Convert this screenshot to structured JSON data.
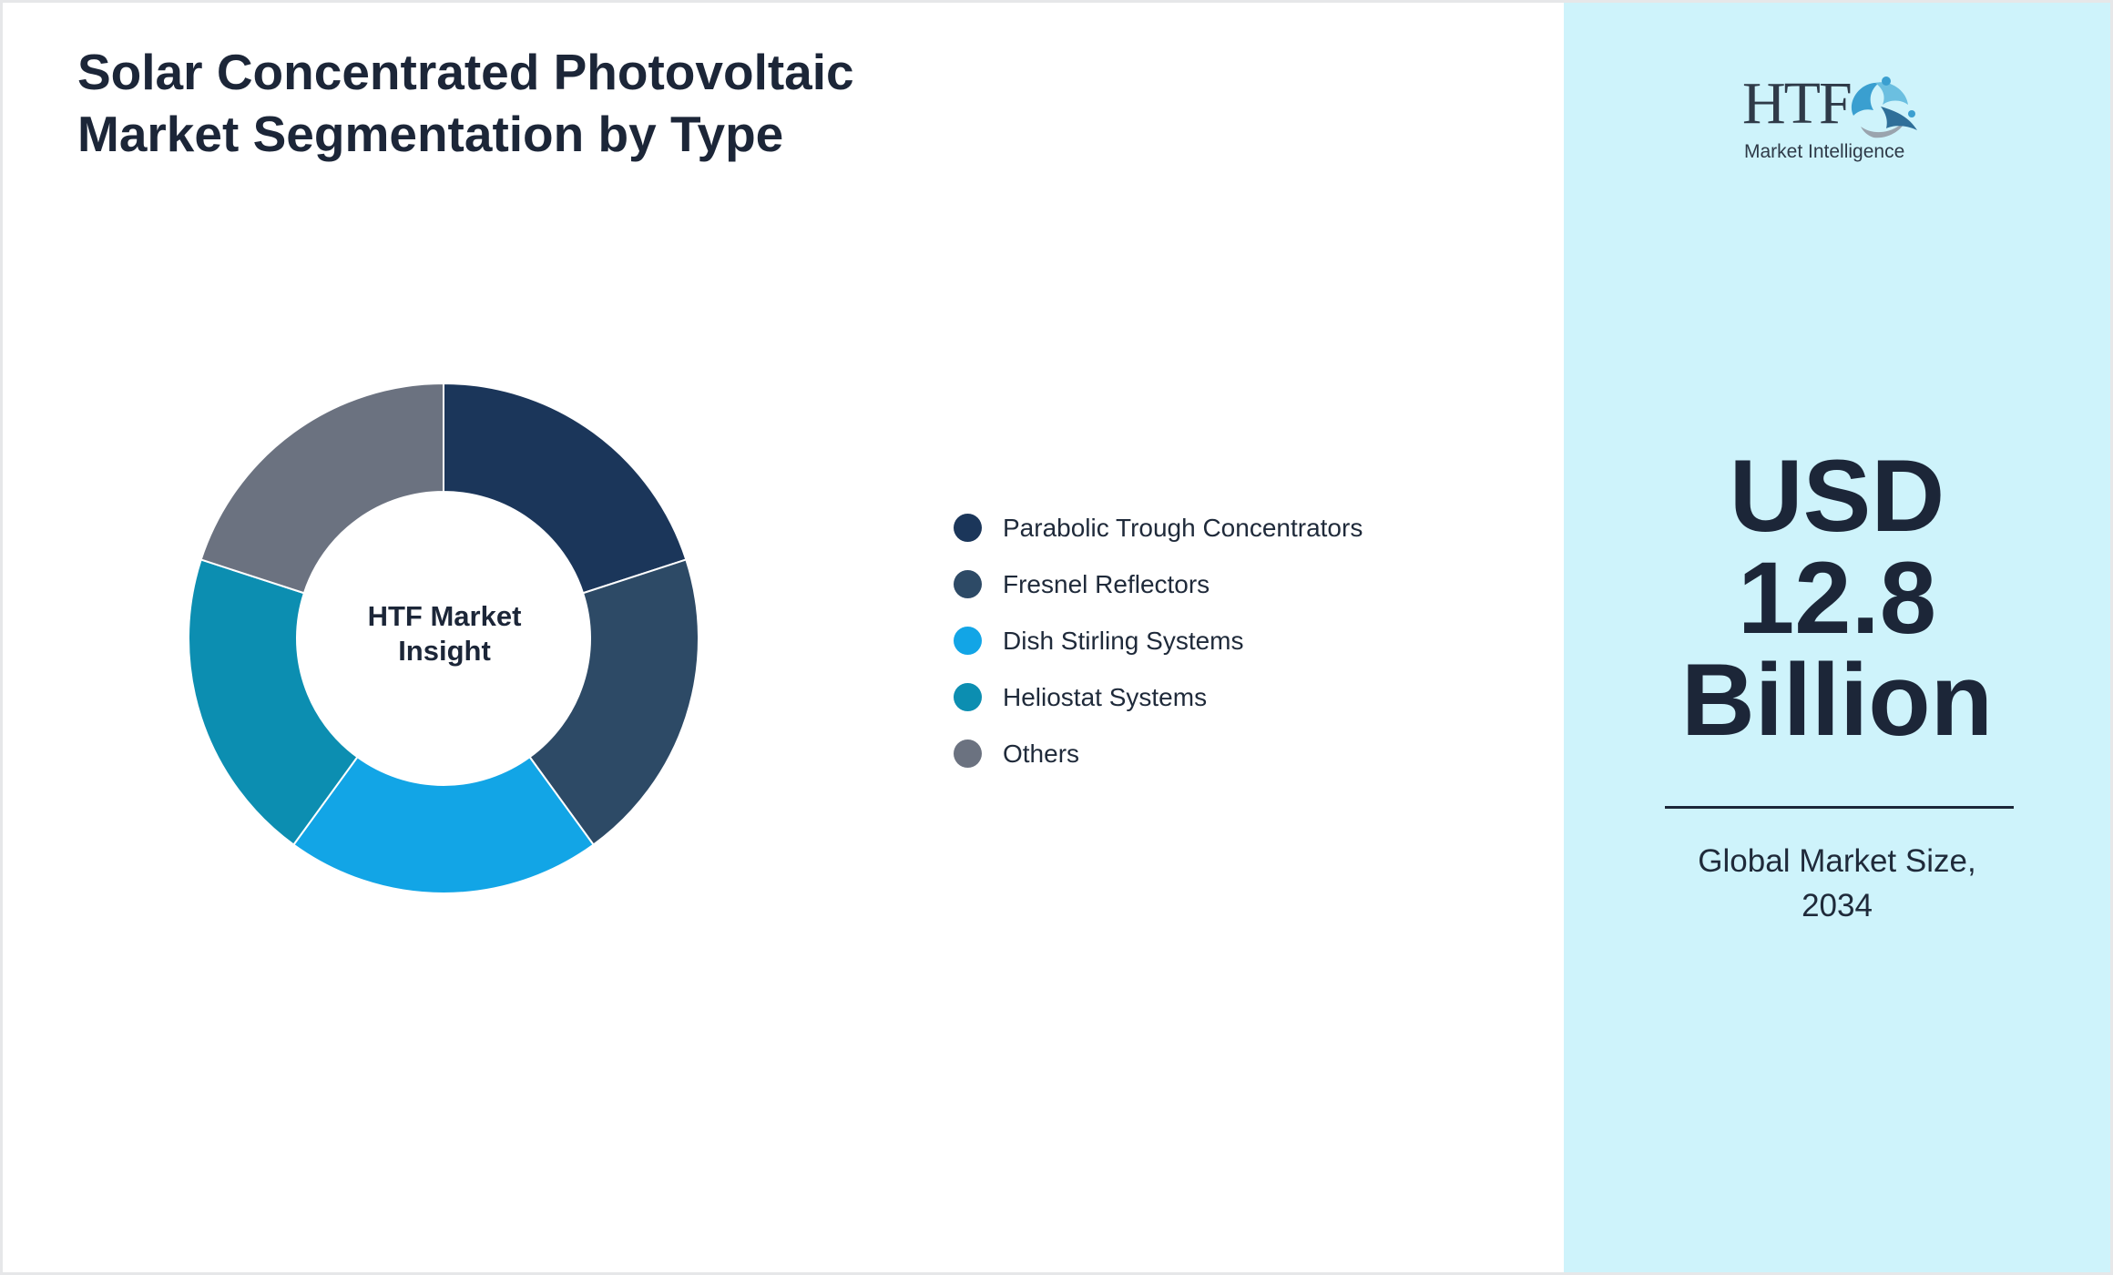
{
  "title": {
    "line1": "Solar Concentrated Photovoltaic",
    "line2": "Market Segmentation by Type"
  },
  "chart_data": {
    "type": "pie",
    "title": "Solar Concentrated Photovoltaic Market Segmentation by Type",
    "center_label": [
      "HTF Market",
      "Insight"
    ],
    "categories": [
      "Parabolic Trough Concentrators",
      "Fresnel Reflectors",
      "Dish Stirling Systems",
      "Heliostat Systems",
      "Others"
    ],
    "values": [
      20,
      20,
      20,
      20,
      20
    ],
    "colors": [
      "#1b365a",
      "#2d4a66",
      "#12a5e6",
      "#0c8eb1",
      "#6b7280"
    ],
    "legend_position": "right"
  },
  "logo": {
    "name": "HTF",
    "subtitle": "Market Intelligence"
  },
  "market": {
    "value_lines": [
      "USD",
      "12.8",
      "Billion"
    ],
    "caption_lines": [
      "Global Market Size,",
      "2034"
    ]
  }
}
